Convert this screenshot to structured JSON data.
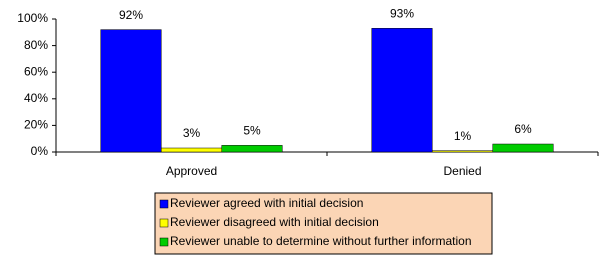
{
  "chart_data": {
    "type": "bar",
    "categories": [
      "Approved",
      "Denied"
    ],
    "series": [
      {
        "name": "Reviewer agreed with initial decision",
        "color": "#0000ff",
        "values": [
          92,
          93
        ],
        "value_labels": [
          "92%",
          "93%"
        ]
      },
      {
        "name": "Reviewer disagreed with initial decision",
        "color": "#ffff00",
        "values": [
          3,
          1
        ],
        "value_labels": [
          "3%",
          "1%"
        ]
      },
      {
        "name": "Reviewer unable to determine without further information",
        "color": "#00cc00",
        "values": [
          5,
          6
        ],
        "value_labels": [
          "5%",
          "6%"
        ]
      }
    ],
    "ylim": [
      0,
      100
    ],
    "yticks": [
      {
        "value": 0,
        "label": "0%"
      },
      {
        "value": 20,
        "label": "20%"
      },
      {
        "value": 40,
        "label": "40%"
      },
      {
        "value": 60,
        "label": "60%"
      },
      {
        "value": 80,
        "label": "80%"
      },
      {
        "value": 100,
        "label": "100%"
      }
    ],
    "legend": "bottom"
  }
}
